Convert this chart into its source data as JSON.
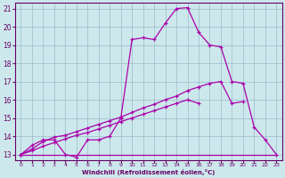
{
  "xlabel": "Windchill (Refroidissement éolien,°C)",
  "bg_color": "#cde8ec",
  "line_color": "#aa00aa",
  "grid_color": "#99bbcc",
  "xlim": [
    -0.5,
    23.5
  ],
  "ylim": [
    12.7,
    21.3
  ],
  "xticks": [
    0,
    1,
    2,
    3,
    4,
    5,
    6,
    7,
    8,
    9,
    10,
    11,
    12,
    13,
    14,
    15,
    16,
    17,
    18,
    19,
    20,
    21,
    22,
    23
  ],
  "yticks": [
    13,
    14,
    15,
    16,
    17,
    18,
    19,
    20,
    21
  ],
  "hours": [
    0,
    1,
    2,
    3,
    4,
    5,
    6,
    7,
    8,
    9,
    10,
    11,
    12,
    13,
    14,
    15,
    16,
    17,
    18,
    19,
    20,
    21,
    22,
    23
  ],
  "line_main": [
    13,
    13.5,
    13.8,
    13.8,
    13.0,
    12.85,
    13.8,
    13.8,
    14.0,
    15.0,
    19.3,
    19.4,
    19.3,
    20.2,
    21.0,
    21.05,
    19.7,
    19.0,
    18.9,
    17.0,
    16.9,
    14.5,
    13.8,
    13.0
  ],
  "line_flat": [
    13,
    13,
    13,
    13,
    13,
    13,
    13,
    13,
    13,
    13,
    13,
    13,
    13,
    13,
    13,
    13,
    13,
    13,
    13,
    13,
    13,
    13,
    13,
    13
  ],
  "line_upper": [
    13.0,
    13.3,
    13.7,
    13.95,
    14.05,
    14.25,
    14.45,
    14.65,
    14.85,
    15.05,
    15.3,
    15.55,
    15.75,
    16.0,
    16.2,
    16.5,
    16.7,
    16.9,
    17.0,
    15.8,
    15.9,
    null,
    null,
    null
  ],
  "line_lower": [
    13.0,
    13.2,
    13.45,
    13.65,
    13.85,
    14.05,
    14.2,
    14.4,
    14.6,
    14.8,
    15.0,
    15.2,
    15.4,
    15.6,
    15.8,
    16.0,
    15.8,
    null,
    null,
    null,
    null,
    null,
    null,
    null
  ]
}
